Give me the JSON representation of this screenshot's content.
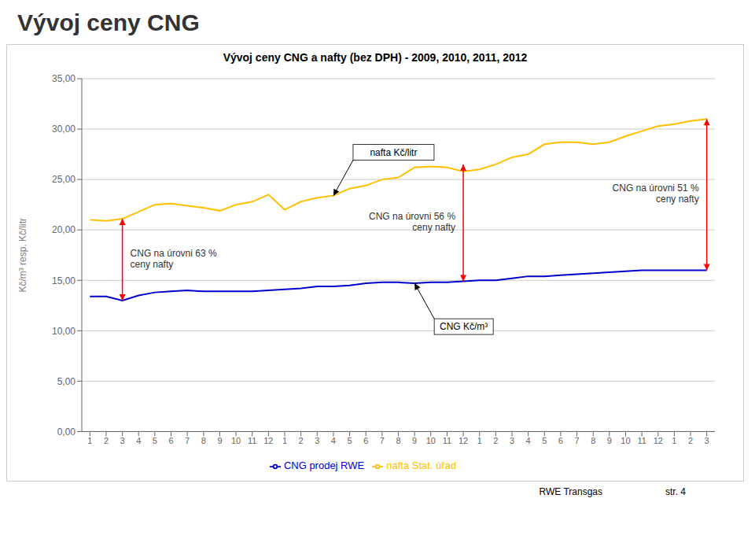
{
  "chart_data": {
    "type": "line",
    "title": "Vývoj ceny CNG",
    "subtitle": "Vývoj ceny  CNG a nafty (bez DPH) - 2009, 2010, 2011, 2012",
    "y_label": "Kč/m³  resp.  Kč/litr",
    "categories": [
      "1",
      "2",
      "3",
      "4",
      "5",
      "6",
      "7",
      "8",
      "9",
      "10",
      "11",
      "12",
      "1",
      "2",
      "3",
      "4",
      "5",
      "6",
      "7",
      "8",
      "9",
      "10",
      "11",
      "12",
      "1",
      "2",
      "3",
      "4",
      "5",
      "6",
      "7",
      "8",
      "9",
      "10",
      "11",
      "12",
      "1",
      "2",
      "3"
    ],
    "series": [
      {
        "name": "CNG prodej RWE",
        "color": "#0000CC",
        "label": "CNG Kč/m³",
        "values": [
          13.4,
          13.4,
          13.0,
          13.5,
          13.8,
          13.9,
          14.0,
          13.9,
          13.9,
          13.9,
          13.9,
          14.0,
          14.1,
          14.2,
          14.4,
          14.4,
          14.5,
          14.7,
          14.8,
          14.8,
          14.7,
          14.8,
          14.8,
          14.9,
          15.0,
          15.0,
          15.2,
          15.4,
          15.4,
          15.5,
          15.6,
          15.7,
          15.8,
          15.9,
          16.0,
          16.0,
          16.0,
          16.0,
          16.0
        ]
      },
      {
        "name": "nafta Stat. úřad",
        "color": "#FFC000",
        "label": "nafta Kč/litr",
        "values": [
          21.0,
          20.9,
          21.1,
          21.8,
          22.5,
          22.6,
          22.4,
          22.2,
          21.9,
          22.5,
          22.8,
          23.5,
          22.0,
          22.8,
          23.2,
          23.4,
          24.1,
          24.4,
          25.0,
          25.2,
          26.2,
          26.3,
          26.2,
          25.8,
          26.0,
          26.5,
          27.2,
          27.5,
          28.5,
          28.7,
          28.7,
          28.5,
          28.7,
          29.3,
          29.8,
          30.3,
          30.5,
          30.8,
          31.0
        ]
      }
    ],
    "ylim": [
      0,
      35
    ],
    "yticks": [
      {
        "value": 0,
        "label": "0,00"
      },
      {
        "value": 5,
        "label": "5,00"
      },
      {
        "value": 10,
        "label": "10,00"
      },
      {
        "value": 15,
        "label": "15,00"
      },
      {
        "value": 20,
        "label": "20,00"
      },
      {
        "value": 25,
        "label": "25,00"
      },
      {
        "value": 30,
        "label": "30,00"
      },
      {
        "value": 35,
        "label": "35,00"
      }
    ],
    "grid": true,
    "legend": "bottom",
    "annotations": [
      {
        "text": "CNG na úrovni 63 %\nceny nafty",
        "x": 3,
        "from": 13.0,
        "to": 21.1,
        "color": "#FF0000"
      },
      {
        "text": "CNG na úrovni 56 %\nceny nafty",
        "x": 24,
        "from": 14.9,
        "to": 26.5,
        "color": "#FF0000"
      },
      {
        "text": "CNG na úrovni 51 %\nceny nafty",
        "x": 39,
        "from": 16.0,
        "to": 31.0,
        "color": "#FF0000"
      }
    ],
    "footer": [
      "RWE Transgas",
      "str. 4"
    ]
  }
}
